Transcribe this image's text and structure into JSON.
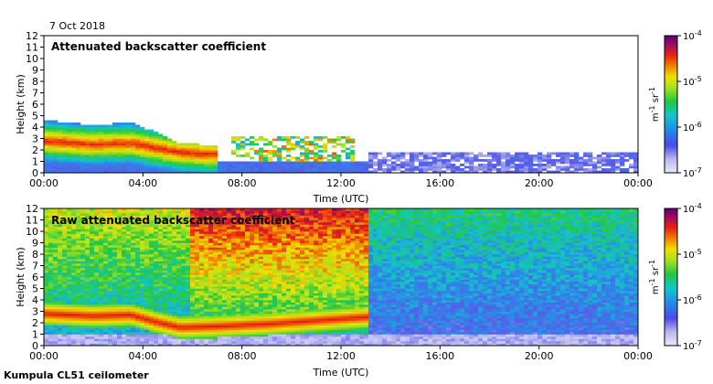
{
  "figure": {
    "date": "7 Oct 2018",
    "footer": "Kumpula CL51 ceilometer"
  },
  "chart_data": [
    {
      "type": "heatmap",
      "title": "Attenuated backscatter coefficient",
      "xlabel": "Time (UTC)",
      "ylabel": "Height (km)",
      "x_ticks": [
        "00:00",
        "04:00",
        "08:00",
        "12:00",
        "16:00",
        "20:00",
        "00:00"
      ],
      "xlim_hours": [
        0,
        24
      ],
      "y_ticks": [
        0,
        1,
        2,
        3,
        4,
        5,
        6,
        7,
        8,
        9,
        10,
        11,
        12
      ],
      "ylim_km": [
        0,
        12
      ],
      "colorbar": {
        "scale": "log",
        "range": [
          1e-07,
          0.0001
        ],
        "ticks": [
          "10-7",
          "10-6",
          "10-5",
          "10-4"
        ],
        "unit": "m-1 sr-1"
      },
      "features": {
        "aerosol_layer_top_km": [
          [
            0,
            4.6
          ],
          [
            2,
            4.2
          ],
          [
            3.5,
            4.4
          ],
          [
            4.5,
            3.6
          ],
          [
            5.5,
            2.6
          ],
          [
            7,
            2.4
          ]
        ],
        "aerosol_layer_peak_km": [
          [
            0,
            2.8
          ],
          [
            2,
            2.5
          ],
          [
            3.5,
            2.6
          ],
          [
            4.5,
            2.2
          ],
          [
            5.5,
            1.8
          ],
          [
            7,
            1.6
          ]
        ],
        "intermittent_layer_hours": [
          7.5,
          12.5
        ],
        "intermittent_layer_km": [
          1.0,
          3.2
        ],
        "low_cloud_hour": 12.3,
        "clear_after_hour": 13.2
      }
    },
    {
      "type": "heatmap",
      "title": "Raw attenuated backscatter coefficient",
      "xlabel": "Time (UTC)",
      "ylabel": "Height (km)",
      "x_ticks": [
        "00:00",
        "04:00",
        "08:00",
        "12:00",
        "16:00",
        "20:00",
        "00:00"
      ],
      "xlim_hours": [
        0,
        24
      ],
      "y_ticks": [
        0,
        1,
        2,
        3,
        4,
        5,
        6,
        7,
        8,
        9,
        10,
        11,
        12
      ],
      "ylim_km": [
        0,
        12
      ],
      "colorbar": {
        "scale": "log",
        "range": [
          1e-07,
          0.0001
        ],
        "ticks": [
          "10-7",
          "10-6",
          "10-5",
          "10-4"
        ],
        "unit": "m-1 sr-1"
      },
      "features": {
        "layer_peak_km": [
          [
            0,
            2.8
          ],
          [
            2,
            2.6
          ],
          [
            3.5,
            2.7
          ],
          [
            4.5,
            2.1
          ],
          [
            5.5,
            1.6
          ],
          [
            7,
            1.7
          ],
          [
            9,
            1.9
          ],
          [
            11,
            2.2
          ],
          [
            13,
            2.5
          ]
        ],
        "high_noise_hours": [
          6,
          13.2
        ],
        "clear_after_hour": 13.2
      }
    }
  ]
}
